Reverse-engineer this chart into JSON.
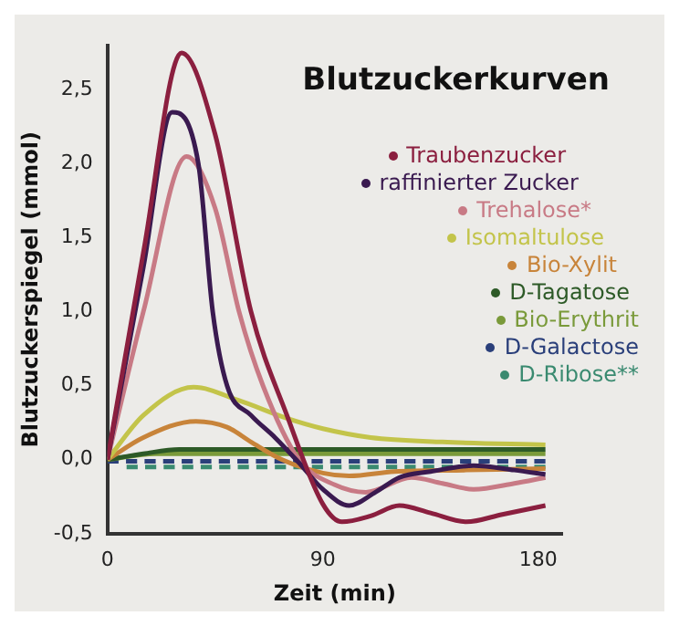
{
  "chart_data": {
    "type": "line",
    "title": "Blutzuckerkurven",
    "xlabel": "Zeit (min)",
    "ylabel": "Blutzuckerspiegel (mmol)",
    "xlim": [
      0,
      190
    ],
    "ylim": [
      -0.5,
      2.8
    ],
    "xticks": [
      0,
      90,
      180
    ],
    "yticks": [
      {
        "value": -0.5,
        "label": "-0,5"
      },
      {
        "value": 0,
        "label": "0,0"
      },
      {
        "value": 0.5,
        "label": "0,5"
      },
      {
        "value": 1,
        "label": "1,0"
      },
      {
        "value": 1.5,
        "label": "1,5"
      },
      {
        "value": 2,
        "label": "2,0"
      },
      {
        "value": 2.5,
        "label": "2,5"
      }
    ],
    "grid": false,
    "legend": "top right",
    "marker": "none",
    "series": [
      {
        "name": "Traubenzucker",
        "color": "#8b1f3f",
        "x": [
          0,
          15,
          31,
          45,
          60,
          75,
          90,
          98,
          110,
          122,
          135,
          150,
          165,
          183
        ],
        "values": [
          0,
          1.4,
          2.75,
          2.2,
          1.0,
          0.3,
          -0.3,
          -0.42,
          -0.38,
          -0.31,
          -0.36,
          -0.42,
          -0.37,
          -0.31
        ]
      },
      {
        "name": "raffinierter Zucker",
        "color": "#3a1a50",
        "x": [
          0,
          15,
          27,
          38,
          44,
          50,
          60,
          70,
          80,
          90,
          101,
          112,
          122,
          135,
          153,
          170,
          183
        ],
        "values": [
          0,
          1.3,
          2.35,
          2.0,
          1.0,
          0.5,
          0.3,
          0.15,
          -0.02,
          -0.2,
          -0.31,
          -0.22,
          -0.12,
          -0.08,
          -0.04,
          -0.07,
          -0.1
        ]
      },
      {
        "name": "Trehalose*",
        "color": "#c87a85",
        "x": [
          0,
          15,
          33,
          45,
          55,
          65,
          80,
          95,
          108,
          127,
          140,
          153,
          170,
          183
        ],
        "values": [
          0,
          1.0,
          2.05,
          1.7,
          1.0,
          0.5,
          0,
          -0.17,
          -0.22,
          -0.12,
          -0.16,
          -0.2,
          -0.16,
          -0.12
        ]
      },
      {
        "name": "Isomaltulose",
        "color": "#c3c44a",
        "x": [
          0,
          15,
          36,
          55,
          75,
          90,
          110,
          140,
          183
        ],
        "values": [
          0,
          0.3,
          0.49,
          0.4,
          0.28,
          0.21,
          0.15,
          0.12,
          0.1
        ]
      },
      {
        "name": "Bio-Xylit",
        "color": "#c8843a",
        "x": [
          0,
          15,
          37,
          50,
          60,
          73,
          90,
          101,
          120,
          150,
          183
        ],
        "values": [
          0,
          0.15,
          0.26,
          0.22,
          0.12,
          0,
          -0.09,
          -0.11,
          -0.08,
          -0.07,
          -0.06
        ]
      },
      {
        "name": "D-Tagatose",
        "color": "#2d5a27",
        "x": [
          0,
          15,
          30,
          183
        ],
        "values": [
          0,
          0.04,
          0.07,
          0.07
        ]
      },
      {
        "name": "Bio-Erythrit",
        "color": "#7a9a3a",
        "x": [
          0,
          20,
          183
        ],
        "values": [
          0,
          0.04,
          0.04
        ]
      },
      {
        "name": "D-Galactose",
        "color": "#2a3f7a",
        "line_style": "dashed",
        "x": [
          0,
          183
        ],
        "values": [
          -0.01,
          -0.01
        ]
      },
      {
        "name": "D-Ribose**",
        "color": "#3a8a70",
        "line_style": "dashed",
        "x": [
          8,
          183
        ],
        "values": [
          -0.05,
          -0.05
        ]
      }
    ]
  }
}
